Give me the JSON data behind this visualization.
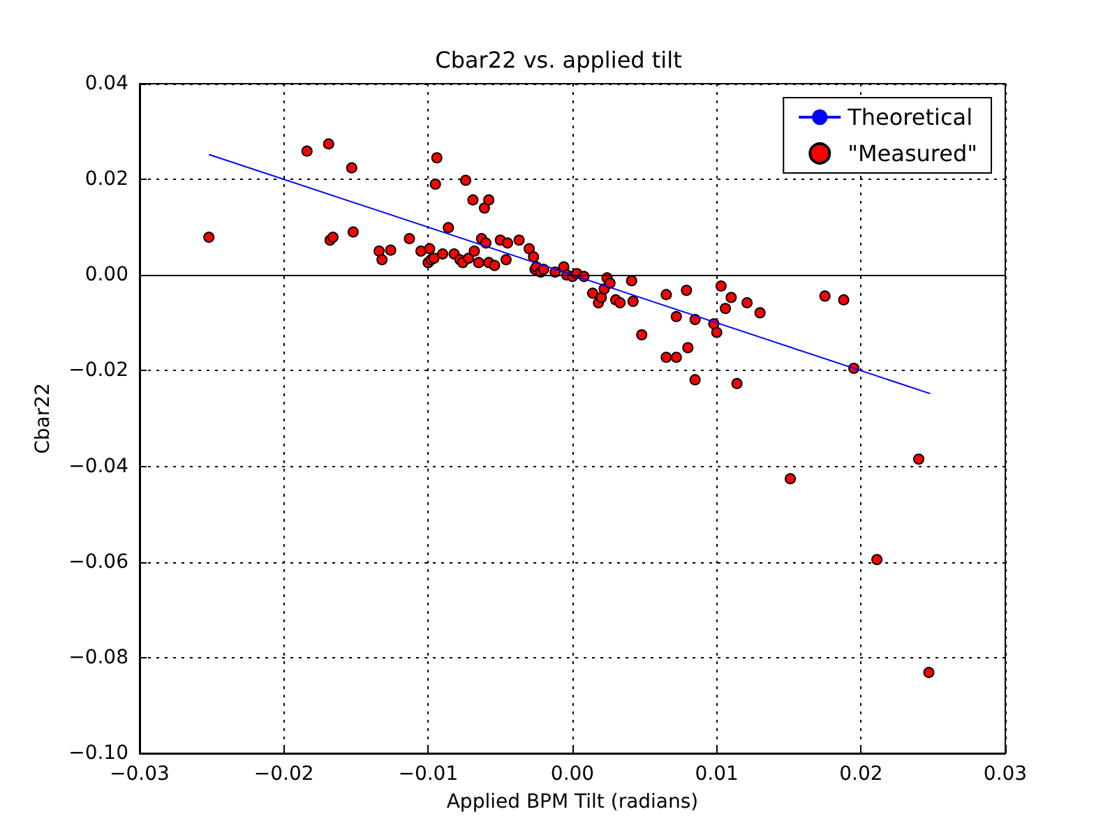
{
  "chart_data": {
    "type": "scatter",
    "title": "Cbar22 vs. applied tilt",
    "xlabel": "Applied BPM Tilt (radians)",
    "ylabel": "Cbar22",
    "xlim": [
      -0.03,
      0.03
    ],
    "ylim": [
      -0.1,
      0.04
    ],
    "xticks": [
      {
        "value": -0.03,
        "label": "−0.03"
      },
      {
        "value": -0.02,
        "label": "−0.02"
      },
      {
        "value": -0.01,
        "label": "−0.01"
      },
      {
        "value": 0,
        "label": "0.00"
      },
      {
        "value": 0.01,
        "label": "0.01"
      },
      {
        "value": 0.02,
        "label": "0.02"
      },
      {
        "value": 0.03,
        "label": "0.03"
      }
    ],
    "yticks": [
      {
        "value": -0.1,
        "label": "−0.10"
      },
      {
        "value": -0.08,
        "label": "−0.08"
      },
      {
        "value": -0.06,
        "label": "−0.06"
      },
      {
        "value": -0.04,
        "label": "−0.04"
      },
      {
        "value": -0.02,
        "label": "−0.02"
      },
      {
        "value": 0,
        "label": "0.00"
      },
      {
        "value": 0.02,
        "label": "0.02"
      },
      {
        "value": 0.04,
        "label": "0.04"
      }
    ],
    "grid": true,
    "legend": "top right",
    "ref_lines": [
      {
        "axis": "y",
        "value": 0,
        "color": "#000000",
        "line_style": "solid"
      }
    ],
    "series": [
      {
        "name": "Theoretical",
        "type": "line",
        "color": "#0000ff",
        "line_style": "solid",
        "marker": "none",
        "x": [
          -0.0252,
          0.0248
        ],
        "values": [
          0.0252,
          -0.0248
        ]
      },
      {
        "name": "\"Measured\"",
        "color": "#ff0000",
        "marker": "circle",
        "x": [
          -0.0252,
          -0.0184,
          -0.0169,
          -0.0168,
          -0.0166,
          -0.0153,
          -0.0152,
          -0.0134,
          -0.0132,
          -0.0126,
          -0.0113,
          -0.0105,
          -0.01,
          -0.0099,
          -0.0098,
          -0.0094,
          -0.0095,
          -0.0096,
          -0.009,
          -0.0086,
          -0.0082,
          -0.0078,
          -0.0076,
          -0.0074,
          -0.0072,
          -0.0069,
          -0.0068,
          -0.0065,
          -0.0063,
          -0.0061,
          -0.006,
          -0.0058,
          -0.0058,
          -0.0054,
          -0.005,
          -0.0046,
          -0.0045,
          -0.0037,
          -0.003,
          -0.0027,
          -0.0026,
          -0.0025,
          -0.0022,
          -0.002,
          -0.0012,
          -0.0006,
          -0.0004,
          0.0,
          0.0003,
          0.0008,
          0.0014,
          0.0018,
          0.002,
          0.0022,
          0.0024,
          0.0026,
          0.003,
          0.0033,
          0.0041,
          0.0042,
          0.0048,
          0.0065,
          0.0065,
          0.0072,
          0.0072,
          0.0079,
          0.008,
          0.0085,
          0.0085,
          0.0098,
          0.01,
          0.0103,
          0.0106,
          0.011,
          0.0114,
          0.0121,
          0.013,
          0.0151,
          0.0175,
          0.0188,
          0.0195,
          0.0211,
          0.024,
          0.0247
        ],
        "values": [
          0.0079,
          0.0259,
          0.0274,
          0.0073,
          0.0079,
          0.0224,
          0.009,
          0.005,
          0.0032,
          0.0052,
          0.0076,
          0.005,
          0.0026,
          0.0055,
          0.0032,
          0.0245,
          0.019,
          0.0035,
          0.0044,
          0.0099,
          0.0044,
          0.0032,
          0.0026,
          0.0198,
          0.0035,
          0.0157,
          0.005,
          0.0026,
          0.0076,
          0.014,
          0.0067,
          0.0157,
          0.0026,
          0.002,
          0.0073,
          0.0032,
          0.0067,
          0.0073,
          0.0055,
          0.0038,
          0.0012,
          0.0017,
          0.0006,
          0.0012,
          0.0006,
          0.0017,
          0.0,
          -0.0003,
          0.0003,
          -0.0003,
          -0.0038,
          -0.0058,
          -0.0047,
          -0.0029,
          -0.0006,
          -0.0017,
          -0.0052,
          -0.0058,
          -0.0012,
          -0.0055,
          -0.0125,
          -0.0041,
          -0.0172,
          -0.0172,
          -0.0087,
          -0.0032,
          -0.0152,
          -0.0093,
          -0.0219,
          -0.0102,
          -0.012,
          -0.0023,
          -0.007,
          -0.0047,
          -0.0227,
          -0.0058,
          -0.0079,
          -0.0426,
          -0.0044,
          -0.0052,
          -0.0195,
          -0.0595,
          -0.0385,
          -0.0831
        ]
      }
    ]
  }
}
